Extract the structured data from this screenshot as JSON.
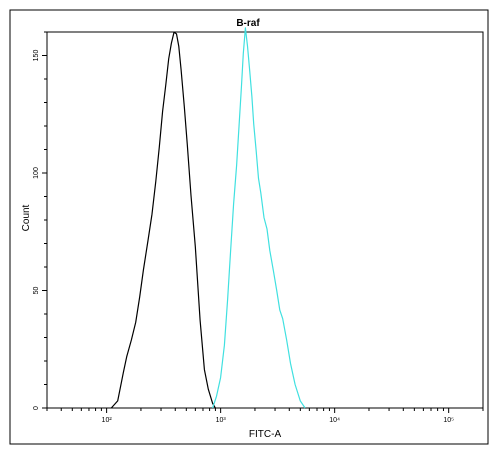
{
  "chart_data": {
    "type": "line",
    "title": "B-raf",
    "xlabel": "FITC-A",
    "ylabel": "Count",
    "xscale": "log",
    "xlim": [
      30,
      200000
    ],
    "ylim": [
      0,
      160
    ],
    "x_major_ticks": [
      100,
      1000,
      10000,
      100000
    ],
    "x_tick_labels": [
      "10²",
      "10³",
      "10⁴",
      "10⁵"
    ],
    "y_ticks": [
      0,
      50,
      100,
      150
    ],
    "y_tick_labels": [
      "0",
      "50",
      "100",
      "150"
    ],
    "grid": false,
    "legend": "none",
    "series": [
      {
        "color": "#000000",
        "x": [
          110,
          125,
          140,
          150,
          165,
          180,
          195,
          210,
          230,
          250,
          270,
          290,
          310,
          330,
          350,
          370,
          390,
          410,
          430,
          450,
          480,
          510,
          550,
          600,
          660,
          720,
          780,
          850,
          900
        ],
        "y": [
          0,
          3,
          12,
          18,
          25,
          33,
          45,
          58,
          72,
          85,
          100,
          115,
          130,
          140,
          150,
          155,
          158,
          156,
          150,
          140,
          125,
          110,
          90,
          70,
          40,
          20,
          8,
          2,
          0
        ]
      },
      {
        "color": "#40e0e0",
        "x": [
          850,
          920,
          1000,
          1080,
          1150,
          1220,
          1300,
          1380,
          1450,
          1520,
          1580,
          1650,
          1720,
          1800,
          1880,
          1950,
          2050,
          2150,
          2250,
          2400,
          2550,
          2700,
          2900,
          3100,
          3300,
          3500,
          3800,
          4100,
          4500,
          5000,
          5500
        ],
        "y": [
          0,
          5,
          15,
          30,
          50,
          70,
          90,
          105,
          120,
          135,
          148,
          158,
          150,
          140,
          130,
          120,
          110,
          100,
          95,
          85,
          80,
          70,
          60,
          50,
          40,
          35,
          25,
          15,
          10,
          3,
          0
        ]
      }
    ]
  }
}
